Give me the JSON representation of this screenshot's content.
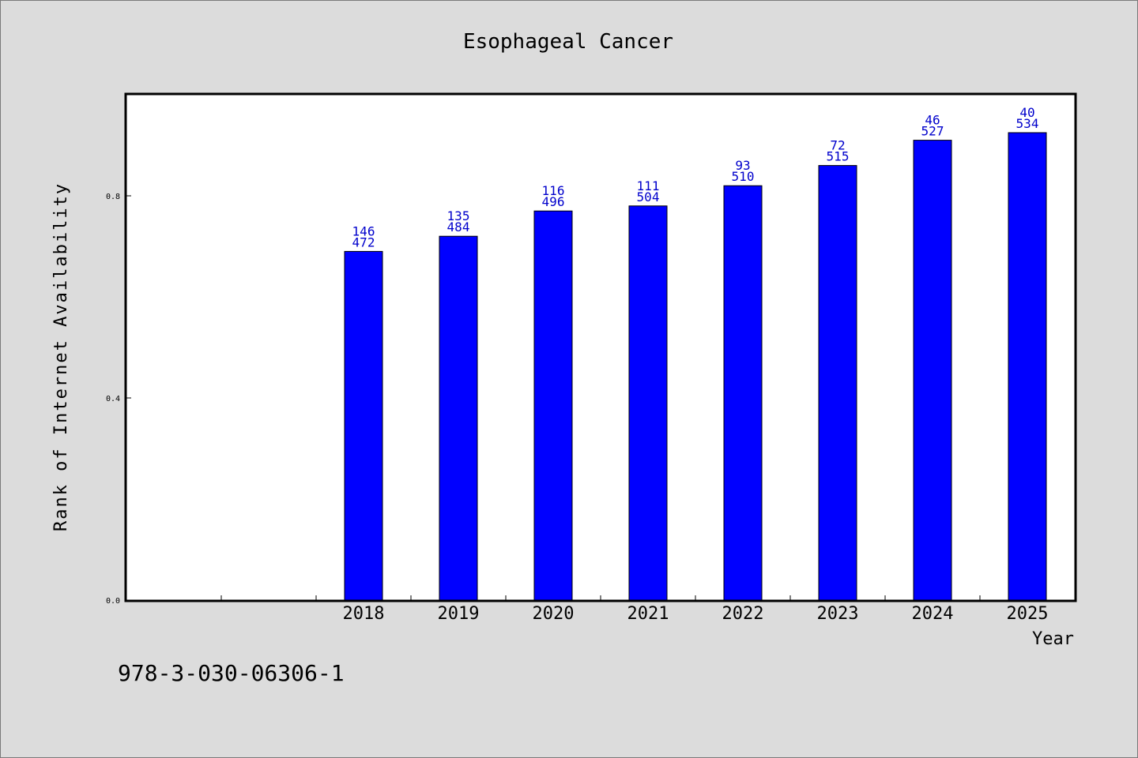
{
  "chart_data": {
    "type": "bar",
    "title": "Esophageal Cancer",
    "xlabel": "Year",
    "ylabel": "Rank of Internet Availability",
    "categories": [
      "2018",
      "2019",
      "2020",
      "2021",
      "2022",
      "2023",
      "2024",
      "2025"
    ],
    "values": [
      0.69,
      0.72,
      0.77,
      0.78,
      0.82,
      0.86,
      0.91,
      0.925
    ],
    "label_top": [
      "146",
      "135",
      "116",
      "111",
      "93",
      "72",
      "46",
      "40"
    ],
    "label_bottom": [
      "472",
      "484",
      "496",
      "504",
      "510",
      "515",
      "527",
      "534"
    ],
    "ylim": [
      0,
      1.0
    ],
    "yticks": [
      "0.0",
      "0.4",
      "0.8"
    ],
    "ytick_values": [
      0,
      0.4,
      0.8
    ],
    "empty_leading_slots": 2,
    "grid": false,
    "bar_color": "#0000ff",
    "label_color": "#0000cc",
    "background": "#dcdcdc",
    "plot_background": "#ffffff"
  },
  "footnote": "978-3-030-06306-1"
}
